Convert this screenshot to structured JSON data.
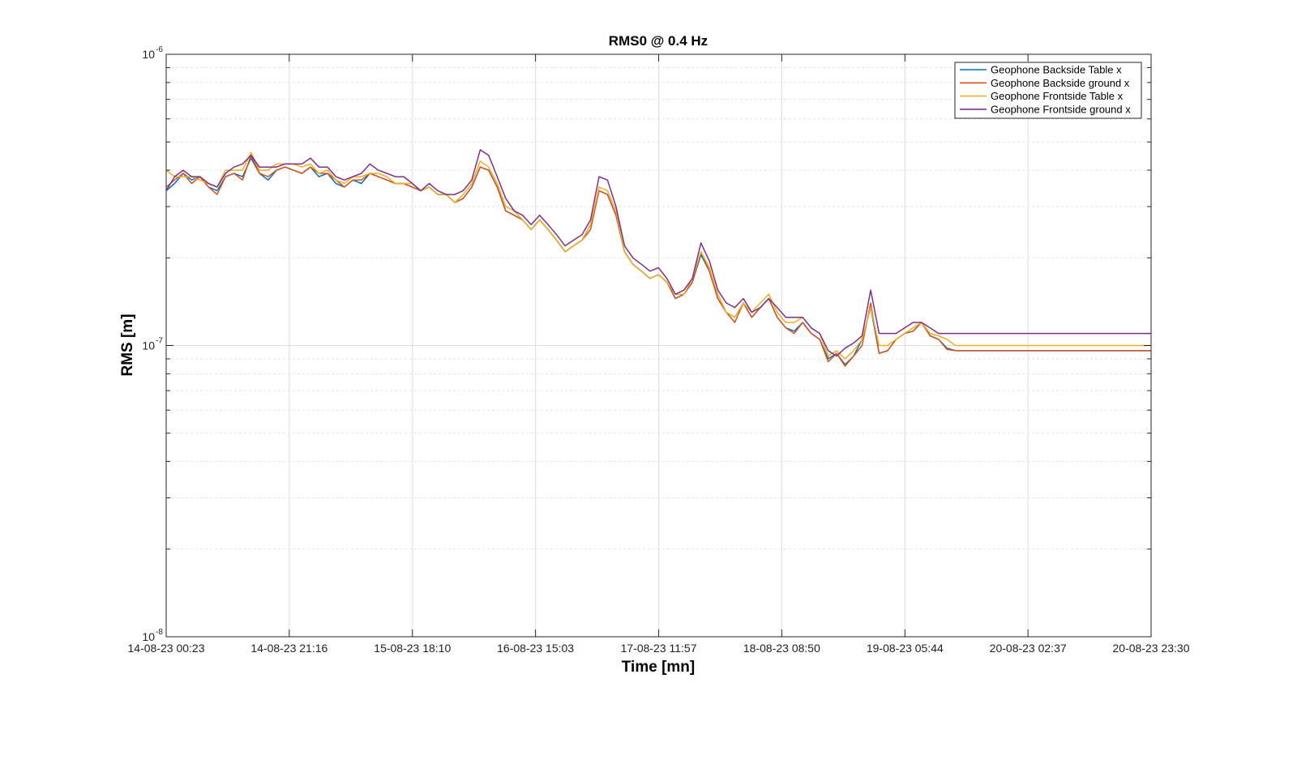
{
  "chart_data": {
    "type": "line",
    "title": "RMS0 @ 0.4 Hz",
    "xlabel": "Time [mn]",
    "ylabel": "RMS [m]",
    "y_scale": "log",
    "ylim": [
      1e-08,
      1e-06
    ],
    "y_ticks": [
      {
        "base": "10",
        "exp": "-8",
        "value": 1e-08
      },
      {
        "base": "10",
        "exp": "-7",
        "value": 1e-07
      },
      {
        "base": "10",
        "exp": "-6",
        "value": 1e-06
      }
    ],
    "x_ticks": [
      "14-08-23 00:23",
      "14-08-23 21:16",
      "15-08-23 18:10",
      "16-08-23 15:03",
      "17-08-23 11:57",
      "18-08-23 08:50",
      "19-08-23 05:44",
      "20-08-23 02:37",
      "20-08-23 23:30"
    ],
    "grid": true,
    "legend_position": "top-right",
    "x": [
      "14-08-23 00:23",
      "14-08-23 01:49",
      "14-08-23 03:16",
      "14-08-23 04:42",
      "14-08-23 06:08",
      "14-08-23 07:35",
      "14-08-23 09:01",
      "14-08-23 10:28",
      "14-08-23 11:54",
      "14-08-23 13:20",
      "14-08-23 14:47",
      "14-08-23 16:13",
      "14-08-23 17:40",
      "14-08-23 19:06",
      "14-08-23 20:33",
      "14-08-23 21:59",
      "14-08-23 23:25",
      "15-08-23 00:52",
      "15-08-23 02:18",
      "15-08-23 03:45",
      "15-08-23 05:11",
      "15-08-23 06:37",
      "15-08-23 08:04",
      "15-08-23 09:30",
      "15-08-23 10:57",
      "15-08-23 12:23",
      "15-08-23 13:49",
      "15-08-23 15:16",
      "15-08-23 16:42",
      "15-08-23 18:09",
      "15-08-23 19:35",
      "15-08-23 21:01",
      "15-08-23 22:28",
      "15-08-23 23:54",
      "16-08-23 01:21",
      "16-08-23 02:47",
      "16-08-23 04:14",
      "16-08-23 05:40",
      "16-08-23 07:06",
      "16-08-23 08:33",
      "16-08-23 09:59",
      "16-08-23 11:26",
      "16-08-23 12:52",
      "16-08-23 14:18",
      "16-08-23 15:45",
      "16-08-23 17:11",
      "16-08-23 18:38",
      "16-08-23 20:04",
      "16-08-23 21:30",
      "16-08-23 22:57",
      "17-08-23 00:23",
      "17-08-23 01:50",
      "17-08-23 03:16",
      "17-08-23 04:42",
      "17-08-23 06:09",
      "17-08-23 07:35",
      "17-08-23 09:02",
      "17-08-23 10:28",
      "17-08-23 11:55",
      "17-08-23 13:21",
      "17-08-23 14:47",
      "17-08-23 16:14",
      "17-08-23 17:40",
      "17-08-23 19:07",
      "17-08-23 20:33",
      "17-08-23 21:59",
      "17-08-23 23:26",
      "18-08-23 00:52",
      "18-08-23 02:19",
      "18-08-23 03:45",
      "18-08-23 05:11",
      "18-08-23 06:38",
      "18-08-23 08:04",
      "18-08-23 09:31",
      "18-08-23 10:57",
      "18-08-23 12:23",
      "18-08-23 13:50",
      "18-08-23 15:16",
      "18-08-23 16:43",
      "18-08-23 18:09",
      "18-08-23 19:35",
      "18-08-23 21:02",
      "18-08-23 22:28",
      "18-08-23 23:55",
      "19-08-23 01:21",
      "19-08-23 02:47",
      "19-08-23 04:14",
      "19-08-23 05:40",
      "19-08-23 07:07",
      "19-08-23 08:33",
      "19-08-23 10:00",
      "19-08-23 11:26",
      "19-08-23 12:52",
      "19-08-23 14:19",
      "19-08-23 15:45",
      "19-08-23 17:12",
      "19-08-23 18:38",
      "19-08-23 20:04",
      "19-08-23 21:31",
      "19-08-23 22:57",
      "20-08-23 00:24",
      "20-08-23 01:50",
      "20-08-23 03:16",
      "20-08-23 04:43",
      "20-08-23 06:09",
      "20-08-23 07:36",
      "20-08-23 09:02",
      "20-08-23 10:28",
      "20-08-23 11:55",
      "20-08-23 13:21",
      "20-08-23 14:48",
      "20-08-23 16:14",
      "20-08-23 17:40",
      "20-08-23 19:07",
      "20-08-23 20:33",
      "20-08-23 22:00",
      "20-08-23 23:26"
    ],
    "series": [
      {
        "name": "Geophone Backside Table x",
        "color": "#0072BD",
        "values": [
          3.4e-07,
          3.6e-07,
          3.9e-07,
          3.7e-07,
          3.8e-07,
          3.5e-07,
          3.4e-07,
          3.8e-07,
          3.9e-07,
          3.8e-07,
          4.4e-07,
          3.9e-07,
          3.7e-07,
          4e-07,
          4.1e-07,
          4e-07,
          3.9e-07,
          4.1e-07,
          3.8e-07,
          3.9e-07,
          3.6e-07,
          3.5e-07,
          3.7e-07,
          3.6e-07,
          3.9e-07,
          3.8e-07,
          3.7e-07,
          3.6e-07,
          3.6e-07,
          3.5e-07,
          3.4e-07,
          3.5e-07,
          3.3e-07,
          3.3e-07,
          3.1e-07,
          3.2e-07,
          3.5e-07,
          4.1e-07,
          4e-07,
          3.5e-07,
          2.9e-07,
          2.8e-07,
          2.7e-07,
          2.5e-07,
          2.7e-07,
          2.5e-07,
          2.3e-07,
          2.1e-07,
          2.2e-07,
          2.3e-07,
          2.6e-07,
          3.4e-07,
          3.3e-07,
          2.8e-07,
          2.1e-07,
          1.9e-07,
          1.8e-07,
          1.7e-07,
          1.75e-07,
          1.65e-07,
          1.45e-07,
          1.5e-07,
          1.65e-07,
          2.05e-07,
          1.8e-07,
          1.45e-07,
          1.3e-07,
          1.25e-07,
          1.4e-07,
          1.25e-07,
          1.35e-07,
          1.45e-07,
          1.25e-07,
          1.15e-07,
          1.12e-07,
          1.2e-07,
          1.1e-07,
          1.05e-07,
          9e-08,
          9.4e-08,
          8.6e-08,
          9.2e-08,
          1.05e-07,
          1.35e-07,
          9.4e-08,
          9.6e-08,
          1.05e-07,
          1.1e-07,
          1.12e-07,
          1.2e-07,
          1.08e-07,
          1.05e-07,
          9.8e-08,
          9.6e-08,
          9.6e-08,
          9.6e-08,
          9.6e-08,
          9.6e-08,
          9.6e-08,
          9.6e-08,
          9.6e-08,
          9.6e-08,
          9.6e-08,
          9.6e-08,
          9.6e-08,
          9.6e-08,
          9.6e-08,
          9.6e-08,
          9.6e-08,
          9.6e-08,
          9.6e-08,
          9.6e-08,
          9.6e-08,
          9.6e-08,
          9.6e-08,
          9.6e-08,
          9.6e-08
        ]
      },
      {
        "name": "Geophone Backside ground x",
        "color": "#D95319",
        "values": [
          3.5e-07,
          3.7e-07,
          3.9e-07,
          3.6e-07,
          3.8e-07,
          3.5e-07,
          3.3e-07,
          3.8e-07,
          3.9e-07,
          3.7e-07,
          4.5e-07,
          3.9e-07,
          3.8e-07,
          4e-07,
          4.1e-07,
          4e-07,
          3.9e-07,
          4.1e-07,
          3.9e-07,
          3.9e-07,
          3.7e-07,
          3.5e-07,
          3.7e-07,
          3.7e-07,
          3.9e-07,
          3.8e-07,
          3.7e-07,
          3.6e-07,
          3.6e-07,
          3.5e-07,
          3.4e-07,
          3.5e-07,
          3.3e-07,
          3.3e-07,
          3.1e-07,
          3.2e-07,
          3.5e-07,
          4.1e-07,
          4e-07,
          3.5e-07,
          2.9e-07,
          2.8e-07,
          2.7e-07,
          2.5e-07,
          2.7e-07,
          2.5e-07,
          2.3e-07,
          2.1e-07,
          2.2e-07,
          2.3e-07,
          2.5e-07,
          3.4e-07,
          3.3e-07,
          2.8e-07,
          2.1e-07,
          1.9e-07,
          1.8e-07,
          1.7e-07,
          1.75e-07,
          1.65e-07,
          1.45e-07,
          1.5e-07,
          1.65e-07,
          2.1e-07,
          1.8e-07,
          1.45e-07,
          1.3e-07,
          1.2e-07,
          1.4e-07,
          1.25e-07,
          1.35e-07,
          1.45e-07,
          1.25e-07,
          1.15e-07,
          1.1e-07,
          1.2e-07,
          1.1e-07,
          1.05e-07,
          8.8e-08,
          9.4e-08,
          8.5e-08,
          9.2e-08,
          1e-07,
          1.4e-07,
          9.4e-08,
          9.6e-08,
          1.05e-07,
          1.1e-07,
          1.12e-07,
          1.2e-07,
          1.08e-07,
          1.05e-07,
          9.7e-08,
          9.6e-08,
          9.6e-08,
          9.6e-08,
          9.6e-08,
          9.6e-08,
          9.6e-08,
          9.6e-08,
          9.6e-08,
          9.6e-08,
          9.6e-08,
          9.6e-08,
          9.6e-08,
          9.6e-08,
          9.6e-08,
          9.6e-08,
          9.6e-08,
          9.6e-08,
          9.6e-08,
          9.6e-08,
          9.6e-08,
          9.6e-08,
          9.6e-08,
          9.6e-08,
          9.6e-08
        ]
      },
      {
        "name": "Geophone Frontside Table x",
        "color": "#EDB120",
        "values": [
          4e-07,
          3.8e-07,
          3.8e-07,
          3.8e-07,
          3.7e-07,
          3.6e-07,
          3.5e-07,
          4e-07,
          4e-07,
          4e-07,
          4.6e-07,
          4e-07,
          4e-07,
          4.2e-07,
          4.2e-07,
          4.2e-07,
          4.1e-07,
          4.2e-07,
          3.9e-07,
          4e-07,
          3.7e-07,
          3.6e-07,
          3.8e-07,
          3.8e-07,
          3.9e-07,
          3.9e-07,
          3.8e-07,
          3.6e-07,
          3.6e-07,
          3.6e-07,
          3.4e-07,
          3.5e-07,
          3.3e-07,
          3.3e-07,
          3.1e-07,
          3.3e-07,
          3.6e-07,
          4.3e-07,
          4.1e-07,
          3.6e-07,
          3e-07,
          2.9e-07,
          2.7e-07,
          2.5e-07,
          2.7e-07,
          2.5e-07,
          2.3e-07,
          2.1e-07,
          2.2e-07,
          2.3e-07,
          2.6e-07,
          3.5e-07,
          3.4e-07,
          2.9e-07,
          2.1e-07,
          1.9e-07,
          1.8e-07,
          1.7e-07,
          1.75e-07,
          1.65e-07,
          1.5e-07,
          1.5e-07,
          1.7e-07,
          2.1e-07,
          1.85e-07,
          1.5e-07,
          1.3e-07,
          1.25e-07,
          1.4e-07,
          1.3e-07,
          1.4e-07,
          1.5e-07,
          1.3e-07,
          1.2e-07,
          1.2e-07,
          1.25e-07,
          1.15e-07,
          1.1e-07,
          9.2e-08,
          9.6e-08,
          9e-08,
          9.6e-08,
          1.05e-07,
          1.35e-07,
          1e-07,
          1e-07,
          1.05e-07,
          1.1e-07,
          1.15e-07,
          1.2e-07,
          1.1e-07,
          1.08e-07,
          1.05e-07,
          1e-07,
          1e-07,
          1e-07,
          1e-07,
          1e-07,
          1e-07,
          1e-07,
          1e-07,
          1e-07,
          1e-07,
          1e-07,
          1e-07,
          1e-07,
          1e-07,
          1e-07,
          1e-07,
          1e-07,
          1e-07,
          1e-07,
          1e-07,
          1e-07,
          1e-07,
          1e-07,
          1e-07
        ]
      },
      {
        "name": "Geophone Frontside ground x",
        "color": "#7E2F8E",
        "values": [
          3.4e-07,
          3.8e-07,
          4e-07,
          3.8e-07,
          3.8e-07,
          3.6e-07,
          3.5e-07,
          3.9e-07,
          4.1e-07,
          4.2e-07,
          4.5e-07,
          4.1e-07,
          4.1e-07,
          4.1e-07,
          4.2e-07,
          4.2e-07,
          4.2e-07,
          4.4e-07,
          4.1e-07,
          4.1e-07,
          3.8e-07,
          3.7e-07,
          3.8e-07,
          3.9e-07,
          4.2e-07,
          4e-07,
          3.9e-07,
          3.8e-07,
          3.8e-07,
          3.6e-07,
          3.4e-07,
          3.6e-07,
          3.4e-07,
          3.3e-07,
          3.3e-07,
          3.4e-07,
          3.7e-07,
          4.7e-07,
          4.5e-07,
          3.8e-07,
          3.2e-07,
          2.9e-07,
          2.8e-07,
          2.6e-07,
          2.8e-07,
          2.6e-07,
          2.4e-07,
          2.2e-07,
          2.3e-07,
          2.4e-07,
          2.7e-07,
          3.8e-07,
          3.7e-07,
          3e-07,
          2.2e-07,
          2e-07,
          1.9e-07,
          1.8e-07,
          1.85e-07,
          1.7e-07,
          1.5e-07,
          1.55e-07,
          1.7e-07,
          2.25e-07,
          1.95e-07,
          1.55e-07,
          1.4e-07,
          1.35e-07,
          1.45e-07,
          1.3e-07,
          1.35e-07,
          1.45e-07,
          1.35e-07,
          1.25e-07,
          1.25e-07,
          1.25e-07,
          1.15e-07,
          1.1e-07,
          9.6e-08,
          9.2e-08,
          9.8e-08,
          1.02e-07,
          1.08e-07,
          1.55e-07,
          1.1e-07,
          1.1e-07,
          1.1e-07,
          1.15e-07,
          1.2e-07,
          1.2e-07,
          1.15e-07,
          1.1e-07,
          1.1e-07,
          1.1e-07,
          1.1e-07,
          1.1e-07,
          1.1e-07,
          1.1e-07,
          1.1e-07,
          1.1e-07,
          1.1e-07,
          1.1e-07,
          1.1e-07,
          1.1e-07,
          1.1e-07,
          1.1e-07,
          1.1e-07,
          1.1e-07,
          1.1e-07,
          1.1e-07,
          1.1e-07,
          1.1e-07,
          1.1e-07,
          1.1e-07,
          1.1e-07,
          1.1e-07,
          1.1e-07
        ]
      }
    ]
  }
}
